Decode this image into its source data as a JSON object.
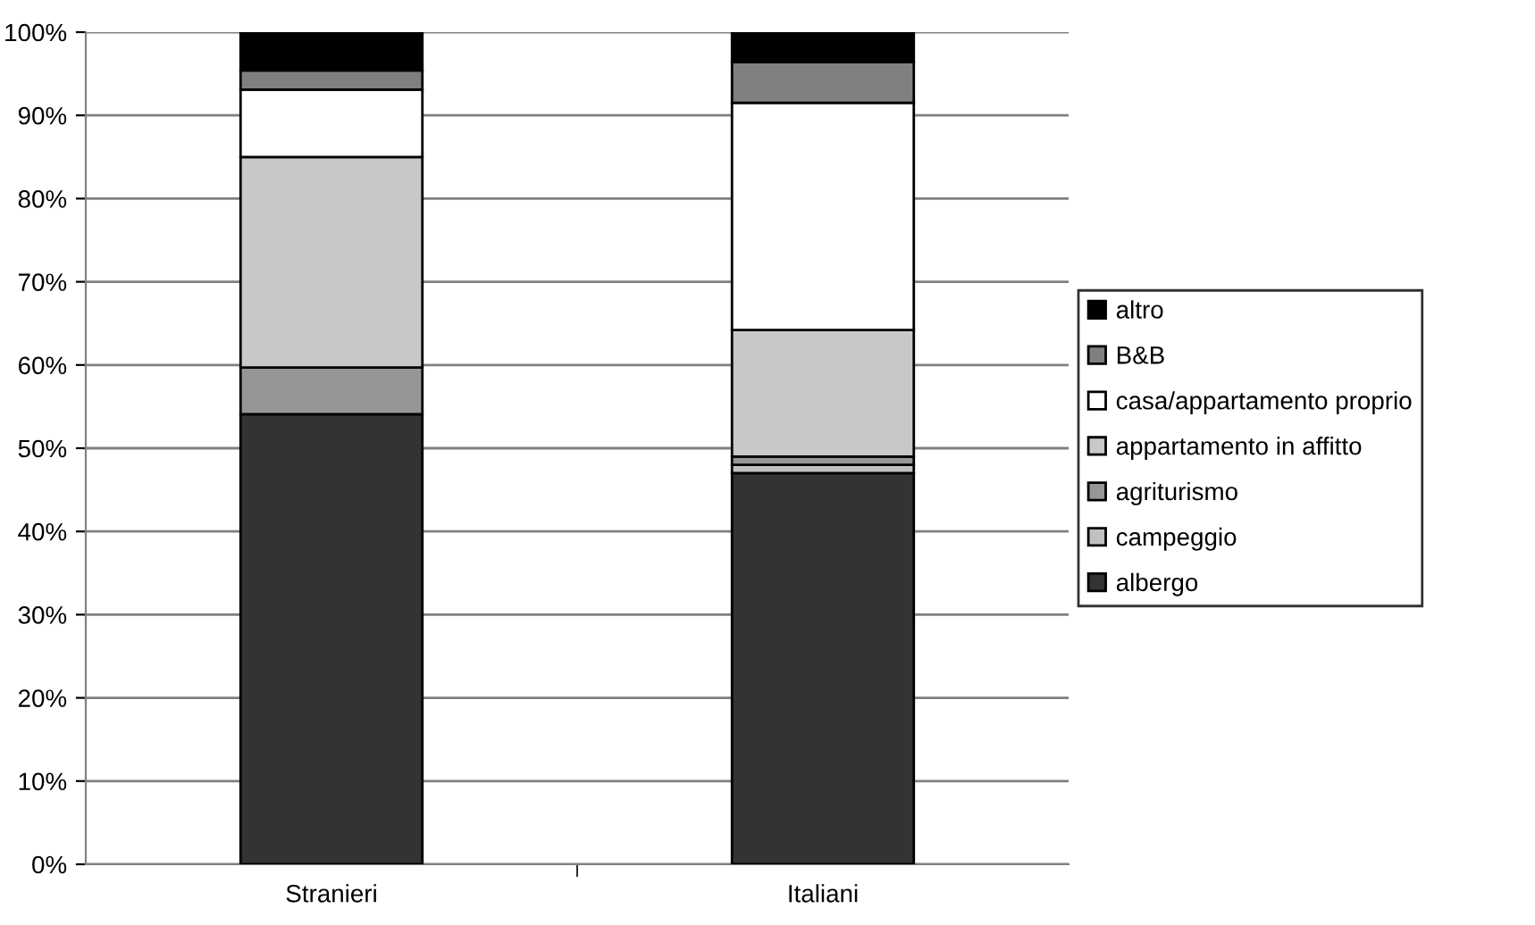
{
  "chart_data": {
    "type": "bar",
    "stacked": true,
    "categories": [
      "Stranieri",
      "Italiani"
    ],
    "series": [
      {
        "name": "albergo",
        "color": "#333333",
        "values": [
          54.1,
          47.0
        ]
      },
      {
        "name": "campeggio",
        "color": "#c0c0c0",
        "values": [
          0,
          1.0
        ]
      },
      {
        "name": "agriturismo",
        "color": "#969696",
        "values": [
          5.6,
          1.0
        ]
      },
      {
        "name": "appartamento in affitto",
        "color": "#c8c8c8",
        "values": [
          25.3,
          15.2
        ]
      },
      {
        "name": "casa/appartamento proprio",
        "color": "#ffffff",
        "values": [
          8.1,
          27.3
        ]
      },
      {
        "name": "B&B",
        "color": "#808080",
        "values": [
          2.3,
          4.9
        ]
      },
      {
        "name": "altro",
        "color": "#000000",
        "values": [
          4.6,
          3.6
        ]
      }
    ],
    "ylim": [
      0,
      100
    ],
    "yticks": [
      {
        "value": 0,
        "label": "0%"
      },
      {
        "value": 10,
        "label": "10%"
      },
      {
        "value": 20,
        "label": "20%"
      },
      {
        "value": 30,
        "label": "30%"
      },
      {
        "value": 40,
        "label": "40%"
      },
      {
        "value": 50,
        "label": "50%"
      },
      {
        "value": 60,
        "label": "60%"
      },
      {
        "value": 70,
        "label": "70%"
      },
      {
        "value": 80,
        "label": "80%"
      },
      {
        "value": 90,
        "label": "90%"
      },
      {
        "value": 100,
        "label": "100%"
      }
    ],
    "grid": "y",
    "legend": "right"
  }
}
